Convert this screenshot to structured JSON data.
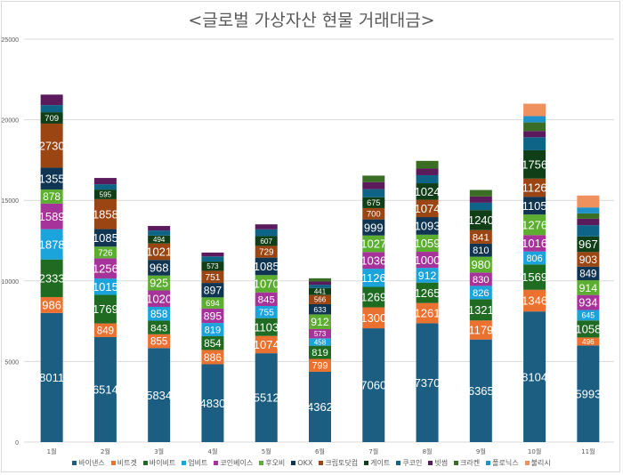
{
  "chart_data": {
    "type": "bar",
    "stacked": true,
    "title": "<글로벌 가상자산 현물 거래대금>",
    "xlabel": "",
    "ylabel": "",
    "ylim": [
      0,
      25000
    ],
    "yticks": [
      0,
      5000,
      10000,
      15000,
      20000,
      25000
    ],
    "grid": true,
    "legend_position": "bottom",
    "categories": [
      "1월",
      "2월",
      "3월",
      "4월",
      "5월",
      "6월",
      "7월",
      "8월",
      "9월",
      "10월",
      "11월"
    ],
    "series": [
      {
        "name": "바이낸스",
        "color": "#1b5e82",
        "show_labels": true,
        "values": [
          8011,
          6514,
          5834,
          4830,
          5512,
          4362,
          7060,
          7370,
          6365,
          8104,
          5993
        ]
      },
      {
        "name": "비트겟",
        "color": "#ea7130",
        "show_labels": true,
        "values": [
          986,
          849,
          855,
          886,
          1074,
          799,
          1300,
          1261,
          1179,
          1346,
          496
        ]
      },
      {
        "name": "바이비트",
        "color": "#1f6b22",
        "show_labels": true,
        "values": [
          2333,
          1769,
          843,
          854,
          1103,
          819,
          1269,
          1265,
          1321,
          1569,
          1058
        ]
      },
      {
        "name": "업비트",
        "color": "#1ba3dc",
        "show_labels": true,
        "values": [
          1878,
          1015,
          858,
          819,
          755,
          458,
          1126,
          912,
          826,
          806,
          645
        ]
      },
      {
        "name": "코인베이스",
        "color": "#a6339a",
        "show_labels": true,
        "values": [
          1589,
          1256,
          1020,
          895,
          845,
          573,
          1036,
          1000,
          830,
          1016,
          934
        ]
      },
      {
        "name": "후오비",
        "color": "#5cae31",
        "show_labels": true,
        "values": [
          878,
          726,
          925,
          694,
          1070,
          912,
          1027,
          1059,
          980,
          1276,
          914
        ]
      },
      {
        "name": "OKX",
        "color": "#0f3552",
        "show_labels": true,
        "values": [
          1355,
          1085,
          968,
          897,
          1085,
          633,
          999,
          1093,
          810,
          1105,
          849
        ]
      },
      {
        "name": "크립토닷컴",
        "color": "#9b4513",
        "show_labels": true,
        "values": [
          2730,
          1858,
          1021,
          751,
          729,
          566,
          700,
          1074,
          841,
          1126,
          903
        ]
      },
      {
        "name": "게이트",
        "color": "#103e16",
        "show_labels": true,
        "values": [
          709,
          595,
          494,
          573,
          607,
          441,
          675,
          1024,
          1240,
          1756,
          967
        ]
      },
      {
        "name": "쿠코인",
        "color": "#0e6486",
        "show_labels": false,
        "values": [
          440,
          330,
          310,
          320,
          420,
          200,
          500,
          500,
          460,
          810,
          700
        ]
      },
      {
        "name": "빗썸",
        "color": "#5b1a5c",
        "show_labels": false,
        "values": [
          650,
          390,
          280,
          240,
          310,
          200,
          440,
          410,
          390,
          390,
          400
        ]
      },
      {
        "name": "크라켄",
        "color": "#3a6e24",
        "show_labels": false,
        "values": [
          0,
          0,
          0,
          0,
          0,
          200,
          400,
          480,
          400,
          530,
          330
        ]
      },
      {
        "name": "폴로닉스",
        "color": "#2192c9",
        "show_labels": false,
        "values": [
          0,
          0,
          0,
          0,
          0,
          0,
          0,
          0,
          0,
          390,
          370
        ]
      },
      {
        "name": "불리시",
        "color": "#ef905f",
        "show_labels": false,
        "values": [
          0,
          0,
          0,
          0,
          0,
          0,
          0,
          0,
          0,
          770,
          740
        ]
      }
    ]
  }
}
